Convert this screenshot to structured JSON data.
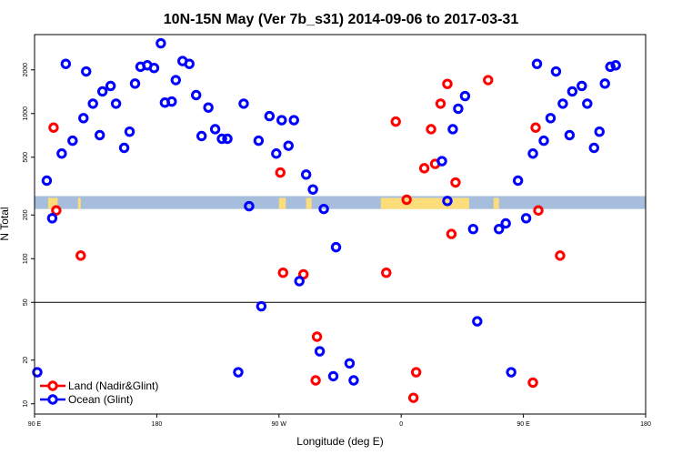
{
  "chart_data": {
    "type": "scatter",
    "title": "10N-15N May (Ver 7b_s31)   2014-09-06 to 2017-03-31",
    "xlabel": "Longitude (deg E)",
    "ylabel": "N Total",
    "x_ticks": [
      {
        "value": 90,
        "label": "90 E"
      },
      {
        "value": 180,
        "label": "180"
      },
      {
        "value": 270,
        "label": "90 W"
      },
      {
        "value": 360,
        "label": "0"
      },
      {
        "value": 450,
        "label": "90 E"
      },
      {
        "value": 540,
        "label": "180"
      }
    ],
    "y_ticks": [
      {
        "value": 10,
        "label": "10"
      },
      {
        "value": 20,
        "label": "20"
      },
      {
        "value": 50,
        "label": "50"
      },
      {
        "value": 100,
        "label": "100"
      },
      {
        "value": 200,
        "label": "200"
      },
      {
        "value": 500,
        "label": "500"
      },
      {
        "value": 1000,
        "label": "1000"
      },
      {
        "value": 2000,
        "label": "2000"
      }
    ],
    "xlim": [
      90,
      540
    ],
    "ylim": [
      8.5,
      3500
    ],
    "y_scale": "log",
    "reference_line_y": 50,
    "land_band": {
      "y_range": [
        220,
        270
      ],
      "ocean_color": "#a6bddb",
      "land_color": "#fddc7a",
      "land_segments": [
        [
          100,
          107
        ],
        [
          122,
          124
        ],
        [
          270,
          275
        ],
        [
          290,
          294
        ],
        [
          345,
          410
        ],
        [
          428,
          432
        ]
      ]
    },
    "series": [
      {
        "name": "Land (Nadir&Glint)",
        "color": "#ff0000",
        "points": [
          [
            104,
            800
          ],
          [
            106,
            215
          ],
          [
            124,
            105
          ],
          [
            271,
            392
          ],
          [
            273,
            80
          ],
          [
            288,
            78
          ],
          [
            297,
            14.5
          ],
          [
            298,
            29
          ],
          [
            349,
            80
          ],
          [
            356,
            880
          ],
          [
            364,
            255
          ],
          [
            369,
            11
          ],
          [
            371,
            16.5
          ],
          [
            377,
            420
          ],
          [
            382,
            780
          ],
          [
            385,
            450
          ],
          [
            389,
            1170
          ],
          [
            394,
            1600
          ],
          [
            397,
            148
          ],
          [
            400,
            335
          ],
          [
            424,
            1700
          ],
          [
            457,
            14
          ],
          [
            459,
            800
          ],
          [
            461,
            215
          ],
          [
            477,
            105
          ]
        ]
      },
      {
        "name": "Ocean (Glint)",
        "color": "#0000ff",
        "points": [
          [
            92,
            16.5
          ],
          [
            99,
            345
          ],
          [
            103,
            190
          ],
          [
            110,
            530
          ],
          [
            113,
            2200
          ],
          [
            118,
            650
          ],
          [
            126,
            930
          ],
          [
            128,
            1950
          ],
          [
            133,
            1170
          ],
          [
            138,
            710
          ],
          [
            140,
            1420
          ],
          [
            146,
            1550
          ],
          [
            150,
            1170
          ],
          [
            156,
            580
          ],
          [
            160,
            750
          ],
          [
            164,
            1610
          ],
          [
            168,
            2100
          ],
          [
            173,
            2150
          ],
          [
            178,
            2060
          ],
          [
            183,
            3050
          ],
          [
            186,
            1190
          ],
          [
            191,
            1210
          ],
          [
            194,
            1700
          ],
          [
            199,
            2300
          ],
          [
            204,
            2200
          ],
          [
            209,
            1340
          ],
          [
            213,
            700
          ],
          [
            218,
            1100
          ],
          [
            223,
            780
          ],
          [
            228,
            670
          ],
          [
            232,
            670
          ],
          [
            240,
            16.5
          ],
          [
            244,
            1170
          ],
          [
            248,
            230
          ],
          [
            255,
            650
          ],
          [
            257,
            47
          ],
          [
            263,
            960
          ],
          [
            268,
            530
          ],
          [
            272,
            900
          ],
          [
            277,
            600
          ],
          [
            281,
            900
          ],
          [
            285,
            70
          ],
          [
            290,
            380
          ],
          [
            295,
            300
          ],
          [
            300,
            23
          ],
          [
            303,
            220
          ],
          [
            310,
            15.5
          ],
          [
            312,
            120
          ],
          [
            322,
            19
          ],
          [
            325,
            14.5
          ],
          [
            390,
            470
          ],
          [
            394,
            250
          ],
          [
            398,
            780
          ],
          [
            402,
            1080
          ],
          [
            407,
            1320
          ],
          [
            413,
            160
          ],
          [
            416,
            37
          ],
          [
            432,
            160
          ],
          [
            437,
            175
          ],
          [
            441,
            16.5
          ],
          [
            446,
            345
          ],
          [
            452,
            190
          ],
          [
            457,
            530
          ],
          [
            460,
            2200
          ],
          [
            465,
            650
          ],
          [
            470,
            930
          ],
          [
            474,
            1950
          ],
          [
            479,
            1170
          ],
          [
            484,
            710
          ],
          [
            486,
            1420
          ],
          [
            493,
            1550
          ],
          [
            497,
            1170
          ],
          [
            502,
            580
          ],
          [
            506,
            750
          ],
          [
            510,
            1610
          ],
          [
            514,
            2100
          ],
          [
            518,
            2150
          ]
        ]
      }
    ],
    "legend": {
      "position": "bottom-left"
    }
  }
}
